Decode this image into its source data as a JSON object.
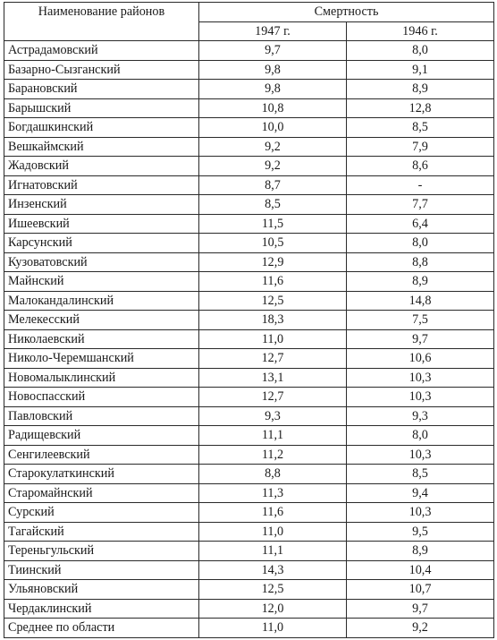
{
  "table": {
    "header": {
      "district": "Наименование районов",
      "mortality": "Смертность",
      "year_1947": "1947 г.",
      "year_1946": "1946 г."
    },
    "rows": [
      {
        "name": "Астрадамовский",
        "v1947": "9,7",
        "v1946": "8,0"
      },
      {
        "name": "Базарно-Сызганский",
        "v1947": "9,8",
        "v1946": "9,1"
      },
      {
        "name": "Барановский",
        "v1947": "9,8",
        "v1946": "8,9"
      },
      {
        "name": "Барышский",
        "v1947": "10,8",
        "v1946": "12,8"
      },
      {
        "name": "Богдашкинский",
        "v1947": "10,0",
        "v1946": "8,5"
      },
      {
        "name": "Вешкаймский",
        "v1947": "9,2",
        "v1946": "7,9"
      },
      {
        "name": "Жадовский",
        "v1947": "9,2",
        "v1946": "8,6"
      },
      {
        "name": "Игнатовский",
        "v1947": "8,7",
        "v1946": "-"
      },
      {
        "name": "Инзенский",
        "v1947": "8,5",
        "v1946": "7,7"
      },
      {
        "name": "Ишеевский",
        "v1947": "11,5",
        "v1946": "6,4"
      },
      {
        "name": "Карсунский",
        "v1947": "10,5",
        "v1946": "8,0"
      },
      {
        "name": "Кузоватовский",
        "v1947": "12,9",
        "v1946": "8,8"
      },
      {
        "name": "Майнский",
        "v1947": "11,6",
        "v1946": "8,9"
      },
      {
        "name": "Малокандалинский",
        "v1947": "12,5",
        "v1946": "14,8"
      },
      {
        "name": "Мелекесский",
        "v1947": "18,3",
        "v1946": "7,5"
      },
      {
        "name": "Николаевский",
        "v1947": "11,0",
        "v1946": "9,7"
      },
      {
        "name": "Николо-Черемшанский",
        "v1947": "12,7",
        "v1946": "10,6"
      },
      {
        "name": "Новомалыклинский",
        "v1947": "13,1",
        "v1946": "10,3"
      },
      {
        "name": "Новоспасский",
        "v1947": "12,7",
        "v1946": "10,3"
      },
      {
        "name": "Павловский",
        "v1947": "9,3",
        "v1946": "9,3"
      },
      {
        "name": "Радищевский",
        "v1947": "11,1",
        "v1946": "8,0"
      },
      {
        "name": "Сенгилеевский",
        "v1947": "11,2",
        "v1946": "10,3"
      },
      {
        "name": "Старокулаткинский",
        "v1947": "8,8",
        "v1946": "8,5"
      },
      {
        "name": "Старомайнский",
        "v1947": "11,3",
        "v1946": "9,4"
      },
      {
        "name": "Сурский",
        "v1947": "11,6",
        "v1946": "10,3"
      },
      {
        "name": "Тагайский",
        "v1947": "11,0",
        "v1946": "9,5"
      },
      {
        "name": "Тереньгульский",
        "v1947": "11,1",
        "v1946": "8,9"
      },
      {
        "name": "Тиинский",
        "v1947": "14,3",
        "v1946": "10,4"
      },
      {
        "name": "Ульяновский",
        "v1947": "12,5",
        "v1946": "10,7"
      },
      {
        "name": "Чердаклинский",
        "v1947": "12,0",
        "v1946": "9,7"
      },
      {
        "name": "Среднее по области",
        "v1947": "11,0",
        "v1946": "9,2"
      }
    ]
  }
}
